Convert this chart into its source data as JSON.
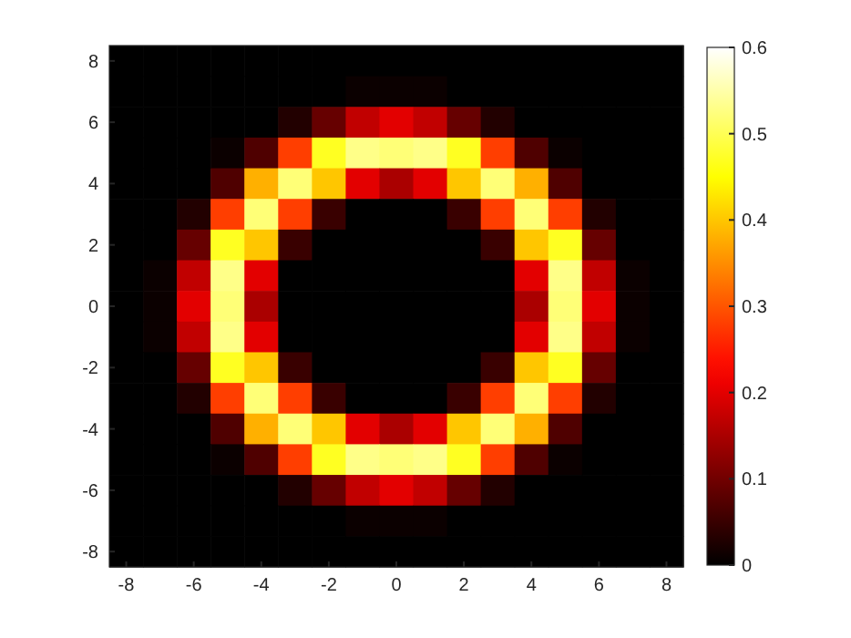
{
  "chart_data": {
    "type": "heatmap",
    "categories": [
      "-8",
      null,
      "-6",
      null,
      "-4",
      null,
      "-2",
      null,
      "0",
      null,
      "2",
      null,
      "4",
      null,
      "6",
      null,
      "8"
    ],
    "y_categories": [
      "8",
      null,
      "6",
      null,
      "4",
      null,
      "2",
      null,
      "0",
      null,
      "-2",
      null,
      "-4",
      null,
      "-6",
      null,
      "-8"
    ],
    "clim": [
      0,
      0.6
    ],
    "cticks": [
      0,
      0.1,
      0.2,
      0.3,
      0.4,
      0.5,
      0.6
    ],
    "cells": [
      [
        0,
        0,
        0,
        0,
        0,
        0,
        0,
        0,
        0,
        0,
        0,
        0,
        0,
        0,
        0,
        0,
        0
      ],
      [
        0,
        0,
        0,
        0,
        0,
        0,
        0,
        0.01,
        0.01,
        0.01,
        0,
        0,
        0,
        0,
        0,
        0,
        0
      ],
      [
        0,
        0,
        0,
        0,
        0,
        0.03,
        0.09,
        0.17,
        0.2,
        0.17,
        0.09,
        0.03,
        0,
        0,
        0,
        0,
        0
      ],
      [
        0,
        0,
        0,
        0.01,
        0.07,
        0.28,
        0.47,
        0.53,
        0.52,
        0.53,
        0.47,
        0.28,
        0.07,
        0.01,
        0,
        0,
        0
      ],
      [
        0,
        0,
        0,
        0.07,
        0.38,
        0.52,
        0.4,
        0.2,
        0.15,
        0.2,
        0.4,
        0.52,
        0.38,
        0.07,
        0,
        0,
        0
      ],
      [
        0,
        0,
        0.03,
        0.28,
        0.52,
        0.28,
        0.05,
        0,
        0,
        0,
        0.05,
        0.28,
        0.52,
        0.28,
        0.03,
        0,
        0
      ],
      [
        0,
        0,
        0.09,
        0.47,
        0.4,
        0.05,
        0,
        0,
        0,
        0,
        0,
        0.05,
        0.4,
        0.47,
        0.09,
        0,
        0
      ],
      [
        0,
        0.01,
        0.17,
        0.53,
        0.2,
        0,
        0,
        0,
        0,
        0,
        0,
        0,
        0.2,
        0.53,
        0.17,
        0.01,
        0
      ],
      [
        0,
        0.01,
        0.2,
        0.52,
        0.15,
        0,
        0,
        0,
        0,
        0,
        0,
        0,
        0.15,
        0.52,
        0.2,
        0.01,
        0
      ],
      [
        0,
        0.01,
        0.17,
        0.53,
        0.2,
        0,
        0,
        0,
        0,
        0,
        0,
        0,
        0.2,
        0.53,
        0.17,
        0.01,
        0
      ],
      [
        0,
        0,
        0.09,
        0.47,
        0.4,
        0.05,
        0,
        0,
        0,
        0,
        0,
        0.05,
        0.4,
        0.47,
        0.09,
        0,
        0
      ],
      [
        0,
        0,
        0.03,
        0.28,
        0.52,
        0.28,
        0.05,
        0,
        0,
        0,
        0.05,
        0.28,
        0.52,
        0.28,
        0.03,
        0,
        0
      ],
      [
        0,
        0,
        0,
        0.07,
        0.38,
        0.52,
        0.4,
        0.2,
        0.15,
        0.2,
        0.4,
        0.52,
        0.38,
        0.07,
        0,
        0,
        0
      ],
      [
        0,
        0,
        0,
        0.01,
        0.07,
        0.28,
        0.47,
        0.53,
        0.52,
        0.53,
        0.47,
        0.28,
        0.07,
        0.01,
        0,
        0,
        0
      ],
      [
        0,
        0,
        0,
        0,
        0,
        0.03,
        0.09,
        0.17,
        0.2,
        0.17,
        0.09,
        0.03,
        0,
        0,
        0,
        0,
        0
      ],
      [
        0,
        0,
        0,
        0,
        0,
        0,
        0,
        0.01,
        0.01,
        0.01,
        0,
        0,
        0,
        0,
        0,
        0,
        0
      ],
      [
        0,
        0,
        0,
        0,
        0,
        0,
        0,
        0,
        0,
        0,
        0,
        0,
        0,
        0,
        0,
        0,
        0
      ]
    ]
  }
}
